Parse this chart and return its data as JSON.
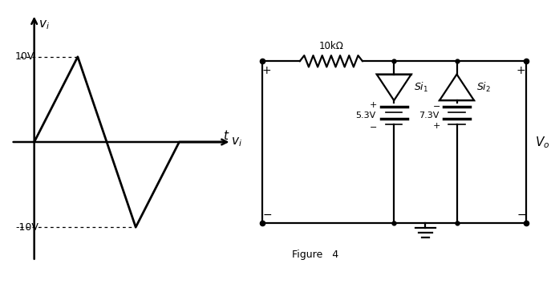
{
  "bg_color": "#ffffff",
  "fig_width": 6.87,
  "fig_height": 3.54,
  "dpi": 100,
  "waveform": {
    "color": "#000000",
    "linewidth": 1.8
  },
  "circuit": {
    "resistor_label": "10kΩ",
    "si1_label": "$Si_1$",
    "si2_label": "$Si_2$",
    "v53_label": "5.3V",
    "v73_label": "7.3V",
    "vo_label": "$V_o$",
    "vi_label": "$v_i$"
  },
  "figure_label": "Figure   4"
}
